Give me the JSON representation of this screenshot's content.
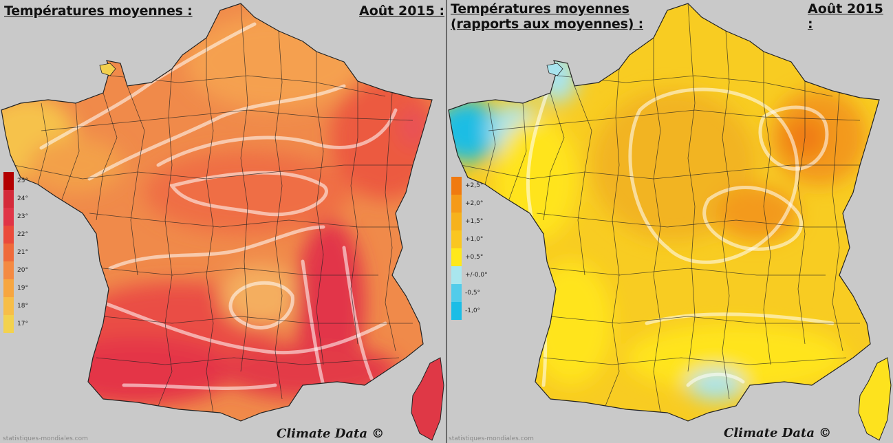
{
  "left_panel": {
    "title": "Températures moyennes :",
    "date": "Août 2015 :",
    "legend": [
      {
        "label": "25°",
        "color": "#b30000"
      },
      {
        "label": "24°",
        "color": "#d42a3a"
      },
      {
        "label": "23°",
        "color": "#e03446"
      },
      {
        "label": "22°",
        "color": "#ea4a3a"
      },
      {
        "label": "21°",
        "color": "#ef6a3a"
      },
      {
        "label": "20°",
        "color": "#f48a42"
      },
      {
        "label": "19°",
        "color": "#f7a640"
      },
      {
        "label": "18°",
        "color": "#f7be48"
      },
      {
        "label": "17°",
        "color": "#f3d24e"
      }
    ],
    "watermark": "Climate Data ©",
    "source": "statistiques-mondiales.com"
  },
  "right_panel": {
    "title": "Températures moyennes\n(rapports aux moyennes) :",
    "date": "Août 2015 :",
    "legend": [
      {
        "label": "+2,5°",
        "color": "#f07a10"
      },
      {
        "label": "+2,0°",
        "color": "#f59a18"
      },
      {
        "label": "+1,5°",
        "color": "#f6b21c"
      },
      {
        "label": "+1,0°",
        "color": "#fac620"
      },
      {
        "label": "+0,5°",
        "color": "#ffe81a"
      },
      {
        "label": "+/-0,0°",
        "color": "#a9e6ee"
      },
      {
        "label": "-0,5°",
        "color": "#52ccea"
      },
      {
        "label": "-1,0°",
        "color": "#1bbde6"
      }
    ],
    "watermark": "Climate Data ©",
    "source": "statistiques-mondiales.com"
  }
}
